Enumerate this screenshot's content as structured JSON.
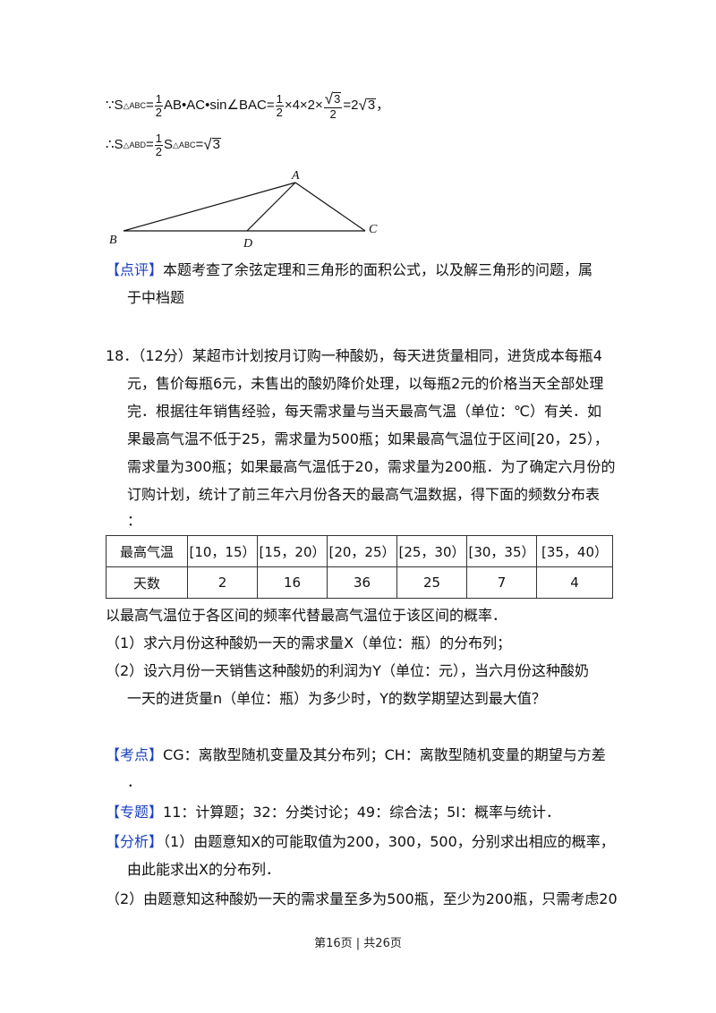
{
  "formula1": {
    "prefix": "∵S",
    "sub1": "△ABC",
    "eq1": "=",
    "f1_num": "1",
    "f1_den": "2",
    "mid1": "AB•AC•sin∠BAC=",
    "f2_num": "1",
    "f2_den": "2",
    "mid2": "×4×2×",
    "f3_num_root": "3",
    "f3_den": "2",
    "eq2": "=2",
    "root_end": "3",
    "tail": "，"
  },
  "formula2": {
    "prefix": "∴S",
    "sub1": "△ABD",
    "eq1": "=",
    "f_num": "1",
    "f_den": "2",
    "s2": "S",
    "sub2": "△ABC",
    "eq2": "=",
    "root": "3"
  },
  "diagram_labels": {
    "A": "A",
    "B": "B",
    "C": "C",
    "D": "D"
  },
  "comment": {
    "tag": "【点评】",
    "line1": "本题考查了余弦定理和三角形的面积公式，以及解三角形的问题，属",
    "line2": "于中档题"
  },
  "problem18": {
    "lines": [
      "18．（12分）某超市计划按月订购一种酸奶，每天进货量相同，进货成本每瓶4",
      "元，售价每瓶6元，未售出的酸奶降价处理，以每瓶2元的价格当天全部处理",
      "完．根据往年销售经验，每天需求量与当天最高气温（单位：℃）有关．如",
      "果最高气温不低于25，需求量为500瓶；如果最高气温位于区间[20，25），",
      "需求量为300瓶；如果最高气温低于20，需求量为200瓶．为了确定六月份的",
      "订购计划，统计了前三年六月份各天的最高气温数据，得下面的频数分布表",
      "："
    ],
    "table": {
      "header": "最高气温",
      "intervals": [
        "[10，15）",
        "[15，20）",
        "[20，25）",
        "[25，30）",
        "[30，35）",
        "[35，40）"
      ],
      "row_label": "天数",
      "days": [
        "2",
        "16",
        "36",
        "25",
        "7",
        "4"
      ]
    },
    "after_table": "以最高气温位于各区间的频率代替最高气温位于该区间的概率．",
    "q1": "（1）求六月份这种酸奶一天的需求量X（单位：瓶）的分布列；",
    "q2_line1": "（2）设六月份一天销售这种酸奶的利润为Y（单位：元），当六月份这种酸奶",
    "q2_line2": "一天的进货量n（单位：瓶）为多少时，Y的数学期望达到最大值？"
  },
  "kaodian": {
    "tag": "【考点】",
    "line1": "CG：离散型随机变量及其分布列；CH：离散型随机变量的期望与方差",
    "line2": "．"
  },
  "zhuanti": {
    "tag": "【专题】",
    "text": "11：计算题；32：分类讨论；49：综合法；5I：概率与统计．"
  },
  "fenxi": {
    "tag": "【分析】",
    "line1": "（1）由题意知X的可能取值为200，300，500，分别求出相应的概率，",
    "line2": "由此能求出X的分布列．",
    "line3": "（2）由题意知这种酸奶一天的需求量至多为500瓶，至少为200瓶，只需考虑20"
  },
  "footer": "第16页 | 共26页"
}
